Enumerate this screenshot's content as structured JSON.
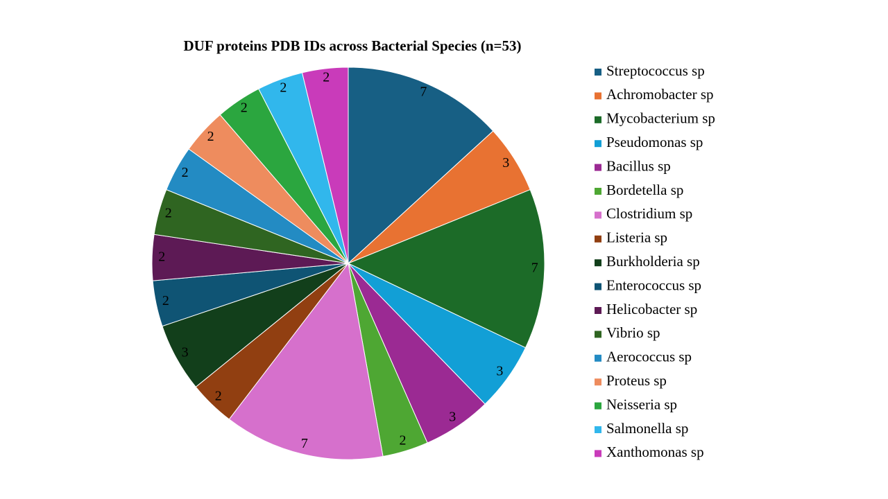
{
  "chart_data": {
    "type": "pie",
    "title": "DUF proteins PDB IDs across Bacterial Species (n=53)",
    "categories": [
      "Streptococcus sp",
      "Achromobacter sp",
      "Mycobacterium sp",
      "Pseudomonas sp",
      "Bacillus sp",
      "Bordetella sp",
      "Clostridium sp",
      "Listeria sp",
      "Burkholderia sp",
      "Enterococcus sp",
      "Helicobacter sp",
      "Vibrio sp",
      "Aerococcus sp",
      "Proteus sp",
      "Neisseria sp",
      "Salmonella sp",
      "Xanthomonas sp"
    ],
    "values": [
      7,
      3,
      7,
      3,
      3,
      2,
      7,
      2,
      3,
      2,
      2,
      2,
      2,
      2,
      2,
      2,
      2
    ],
    "colors": [
      "#175f84",
      "#e87232",
      "#1c6b28",
      "#129fd6",
      "#9b2a93",
      "#4ea733",
      "#d670cc",
      "#913f11",
      "#123f1b",
      "#0f5474",
      "#5d1a55",
      "#2f6521",
      "#238bc3",
      "#ee8c5e",
      "#2ba63f",
      "#31b7ec",
      "#c93bba"
    ],
    "legend_position": "right",
    "start_angle": "top (12 o'clock)",
    "direction": "clockwise"
  }
}
